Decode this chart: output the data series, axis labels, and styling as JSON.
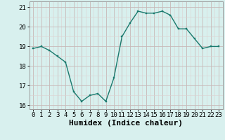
{
  "x": [
    0,
    1,
    2,
    3,
    4,
    5,
    6,
    7,
    8,
    9,
    10,
    11,
    12,
    13,
    14,
    15,
    16,
    17,
    18,
    19,
    20,
    21,
    22,
    23
  ],
  "y": [
    18.9,
    19.0,
    18.8,
    18.5,
    18.2,
    16.7,
    16.2,
    16.5,
    16.6,
    16.2,
    17.4,
    19.5,
    20.2,
    20.8,
    20.7,
    20.7,
    20.8,
    20.6,
    19.9,
    19.9,
    19.4,
    18.9,
    19.0,
    19.0
  ],
  "line_color": "#1a7a6e",
  "marker": "s",
  "marker_size": 2.0,
  "bg_color": "#d8f0ee",
  "grid_major_color": "#c8b8b8",
  "grid_minor_color": "#ddd0d0",
  "xlabel": "Humidex (Indice chaleur)",
  "xlim": [
    -0.5,
    23.5
  ],
  "ylim": [
    15.8,
    21.3
  ],
  "yticks": [
    16,
    17,
    18,
    19,
    20,
    21
  ],
  "xticks": [
    0,
    1,
    2,
    3,
    4,
    5,
    6,
    7,
    8,
    9,
    10,
    11,
    12,
    13,
    14,
    15,
    16,
    17,
    18,
    19,
    20,
    21,
    22,
    23
  ],
  "tick_font_size": 6.5,
  "label_font_size": 8.0,
  "line_width": 1.0
}
